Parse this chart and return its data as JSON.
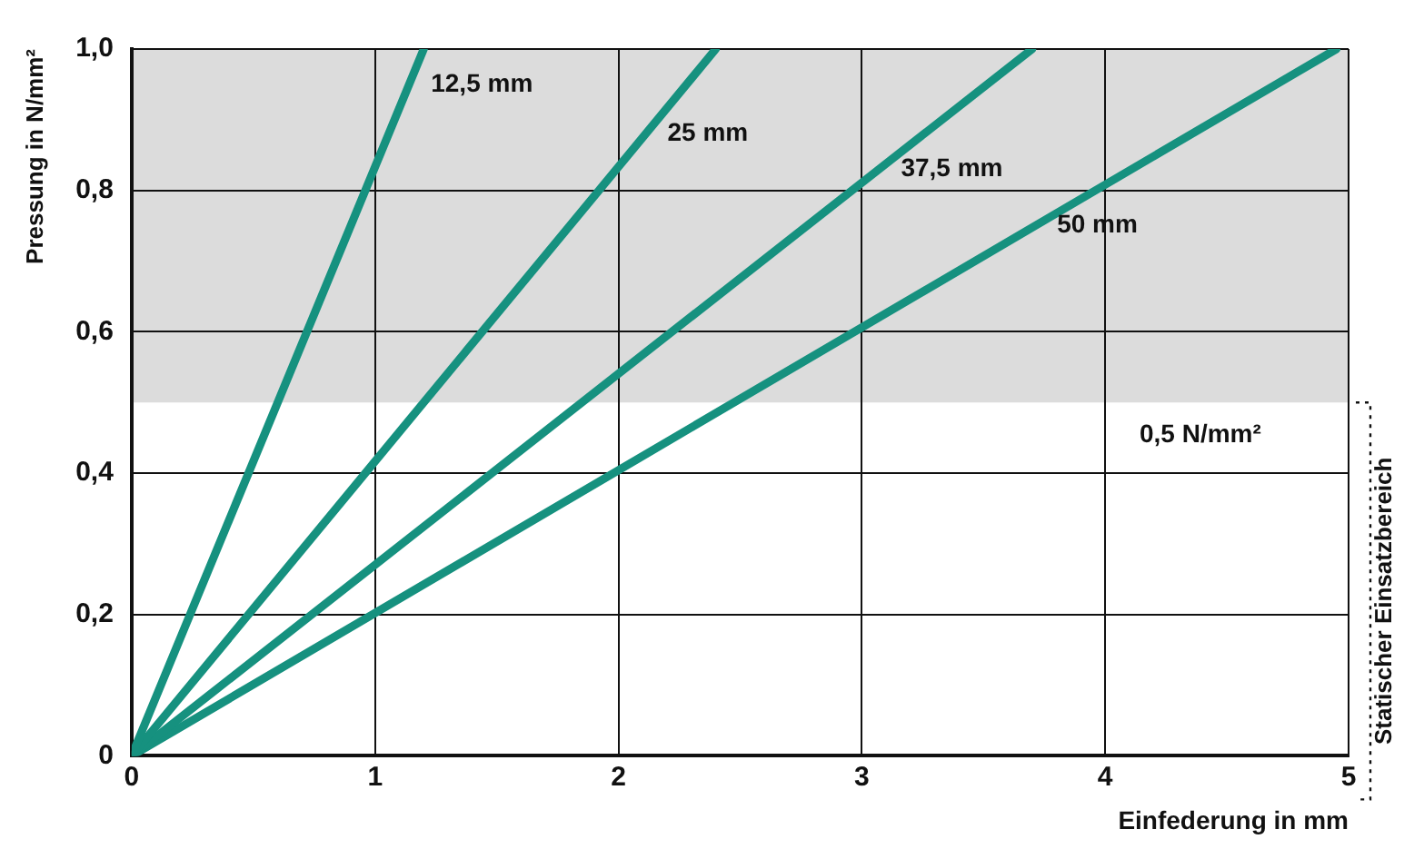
{
  "chart_data": {
    "type": "line",
    "xlabel": "Einfederung in mm",
    "ylabel": "Pressung in N/mm²",
    "xlim": [
      0,
      5
    ],
    "ylim": [
      0,
      1.0
    ],
    "xticks": [
      0,
      1,
      2,
      3,
      4,
      5
    ],
    "yticks": [
      0,
      {
        "value": 0.2,
        "label": "0,2"
      },
      {
        "value": 0.4,
        "label": "0,4"
      },
      {
        "value": 0.6,
        "label": "0,6"
      },
      {
        "value": 0.8,
        "label": "0,8"
      },
      {
        "value": 1.0,
        "label": "1,0"
      }
    ],
    "grid": true,
    "legend": false,
    "marker": "none",
    "line_style": "solid",
    "series": [
      {
        "name": "12,5 mm",
        "color": "#16917f",
        "x": [
          0,
          1.2
        ],
        "values": [
          0,
          1.0
        ]
      },
      {
        "name": "25 mm",
        "color": "#16917f",
        "x": [
          0,
          2.4
        ],
        "values": [
          0,
          1.0
        ]
      },
      {
        "name": "37,5 mm",
        "color": "#16917f",
        "x": [
          0,
          3.7
        ],
        "values": [
          0,
          1.0
        ]
      },
      {
        "name": "50 mm",
        "color": "#16917f",
        "x": [
          0,
          4.95
        ],
        "values": [
          0,
          1.0
        ]
      }
    ],
    "bands": [
      {
        "axis": "y",
        "from": 0.5,
        "to": 1.0,
        "label": "0,5 N/mm²",
        "color": "#dcdcdc"
      }
    ],
    "annotations": [
      "Statischer Einsatzbereich"
    ]
  }
}
